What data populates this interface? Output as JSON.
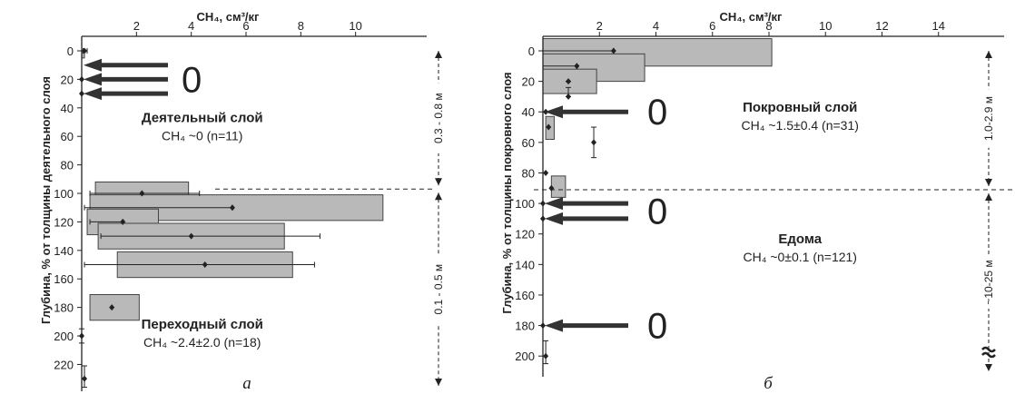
{
  "chart_data": [
    {
      "type": "bar",
      "orientation": "horizontal",
      "panel_letter": "а",
      "x_axis_label": "CH₄, см³/кг",
      "x_ticks": [
        2,
        4,
        6,
        8,
        10
      ],
      "xlim": [
        0,
        12
      ],
      "y_axis_label": "Глубина, % от толщины деятельного слоя",
      "y_ticks": [
        0,
        20,
        40,
        60,
        80,
        100,
        120,
        140,
        160,
        180,
        200,
        220
      ],
      "ylim": [
        0,
        235
      ],
      "grid": false,
      "boundary_depth": 97,
      "bars": [
        {
          "top": 0,
          "bottom": 5,
          "min": 0,
          "max": 0.1
        },
        {
          "top": 92,
          "bottom": 108,
          "min": 0.5,
          "max": 3.9
        },
        {
          "top": 101,
          "bottom": 119,
          "min": 0.3,
          "max": 11.0
        },
        {
          "top": 111,
          "bottom": 129,
          "min": 0.2,
          "max": 2.8
        },
        {
          "top": 121,
          "bottom": 139,
          "min": 0.6,
          "max": 7.4
        },
        {
          "top": 141,
          "bottom": 159,
          "min": 1.3,
          "max": 7.7
        },
        {
          "top": 171,
          "bottom": 189,
          "min": 0.3,
          "max": 2.1
        }
      ],
      "points": [
        {
          "depth": 0,
          "value": 0.1,
          "err_low": 0.05,
          "err_high": 0.1
        },
        {
          "depth": 20,
          "value": 0.0
        },
        {
          "depth": 30,
          "value": 0.0
        },
        {
          "depth": 100,
          "value": 2.2,
          "err_low": 1.9,
          "err_high": 2.1
        },
        {
          "depth": 110,
          "value": 5.5,
          "err_low": 5.4
        },
        {
          "depth": 120,
          "value": 1.5,
          "err_low": 1.2
        },
        {
          "depth": 130,
          "value": 4.0,
          "err_low": 3.3,
          "err_high": 4.7
        },
        {
          "depth": 150,
          "value": 4.5,
          "err_low": 4.4,
          "err_high": 4.0
        },
        {
          "depth": 180,
          "value": 1.1
        },
        {
          "depth": 200,
          "value": 0.0,
          "err_low": 0,
          "err_high": 0,
          "vlow": 5,
          "vhigh": 5
        },
        {
          "depth": 230,
          "value": 0.1,
          "vlow": 9,
          "vhigh": 6
        }
      ],
      "zero_arrows": [
        10,
        20,
        30
      ],
      "zero_label": "0",
      "annotations": [
        {
          "title": "Деятельный слой",
          "stat": "CH₄ ~0 (n=11)",
          "x": 4.4,
          "y": 50
        },
        {
          "title": "Переходный слой",
          "stat": "CH₄ ~2.4±2.0 (n=18)",
          "x": 4.4,
          "y": 195
        }
      ],
      "ranges": [
        {
          "label": "0.3 - 0.8 м",
          "from": 0,
          "to": 97
        },
        {
          "label": "0.1 - 0.5 м",
          "from": 97,
          "to": 235
        }
      ]
    },
    {
      "type": "bar",
      "orientation": "horizontal",
      "panel_letter": "б",
      "x_axis_label": "CH₄, см³/кг",
      "x_ticks": [
        2,
        4,
        6,
        8,
        10,
        12,
        14
      ],
      "xlim": [
        0,
        16
      ],
      "y_axis_label": "Глубина, % от толщины покровного слоя",
      "y_ticks": [
        0,
        20,
        40,
        60,
        80,
        100,
        120,
        140,
        160,
        180,
        200
      ],
      "ylim": [
        0,
        210
      ],
      "grid": false,
      "boundary_depth": 91,
      "bars": [
        {
          "top": -8,
          "bottom": 10,
          "min": 0,
          "max": 8.1
        },
        {
          "top": 2,
          "bottom": 20,
          "min": 0,
          "max": 3.6
        },
        {
          "top": 12,
          "bottom": 28,
          "min": 0,
          "max": 1.9
        },
        {
          "top": 43,
          "bottom": 58,
          "min": 0.1,
          "max": 0.4
        },
        {
          "top": 82,
          "bottom": 96,
          "min": 0.3,
          "max": 0.8
        }
      ],
      "points": [
        {
          "depth": 0,
          "value": 2.5,
          "err_low": 2.5
        },
        {
          "depth": 10,
          "value": 1.2,
          "err_low": 1.2
        },
        {
          "depth": 20,
          "value": 0.9,
          "vlow": 0,
          "vhigh": 0
        },
        {
          "depth": 30,
          "value": 0.9,
          "vlow": 6,
          "vhigh": 0
        },
        {
          "depth": 40,
          "value": 0.1
        },
        {
          "depth": 50,
          "value": 0.2
        },
        {
          "depth": 60,
          "value": 1.8,
          "vlow": 10,
          "vhigh": 10
        },
        {
          "depth": 80,
          "value": 0.1
        },
        {
          "depth": 90,
          "value": 0.3
        },
        {
          "depth": 100,
          "value": 0.0
        },
        {
          "depth": 110,
          "value": 0.0
        },
        {
          "depth": 180,
          "value": 0.0
        },
        {
          "depth": 200,
          "value": 0.1,
          "vlow": 10,
          "vhigh": 5
        }
      ],
      "zero_arrows": [
        40,
        100,
        110,
        180
      ],
      "zero_label": "0",
      "annotations": [
        {
          "title": "Покровный слой",
          "stat": "CH₄ ~1.5±0.4 (n=31)",
          "x": 9.1,
          "y": 40
        },
        {
          "title": "Едома",
          "stat": "CH₄ ~0±0.1 (n=121)",
          "x": 9.1,
          "y": 126
        }
      ],
      "ranges": [
        {
          "label": "1.0-2.9 м",
          "from": 0,
          "to": 91
        },
        {
          "label": "~10-25 м",
          "from": 91,
          "to": 210,
          "break": true
        }
      ]
    }
  ]
}
